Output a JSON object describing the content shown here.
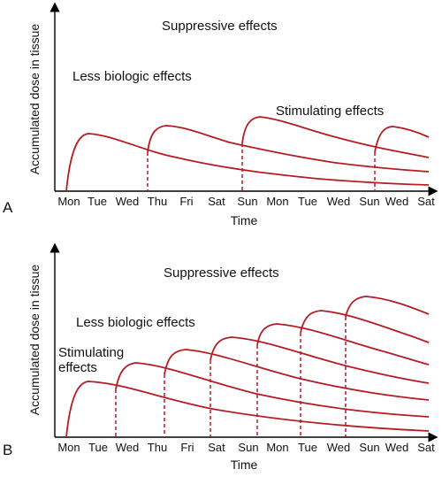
{
  "panels": [
    {
      "label": "A",
      "ylabel": "Accumulated dose in tissue",
      "xlabel": "Time",
      "days": [
        "Mon",
        "Tue",
        "Wed",
        "Thu",
        "Fri",
        "Sat",
        "Sun",
        "Mon",
        "Tue",
        "Wed",
        "Sun",
        "Wed",
        "Sat"
      ],
      "regions": {
        "suppressive": "Suppressive effects",
        "less": "Less biologic effects",
        "stimulating": "Stimulating effects"
      }
    },
    {
      "label": "B",
      "ylabel": "Accumulated dose in tissue",
      "xlabel": "Time",
      "days": [
        "Mon",
        "Tue",
        "Wed",
        "Thu",
        "Fri",
        "Sat",
        "Sun",
        "Mon",
        "Tue",
        "Wed",
        "Sun",
        "Wed",
        "Sat"
      ],
      "regions": {
        "suppressive": "Suppressive effects",
        "less": "Less biologic effects",
        "stimulating_line1": "Stimulating",
        "stimulating_line2": "effects"
      }
    }
  ],
  "colors": {
    "curve": "#b51c24",
    "axis": "#000000"
  }
}
